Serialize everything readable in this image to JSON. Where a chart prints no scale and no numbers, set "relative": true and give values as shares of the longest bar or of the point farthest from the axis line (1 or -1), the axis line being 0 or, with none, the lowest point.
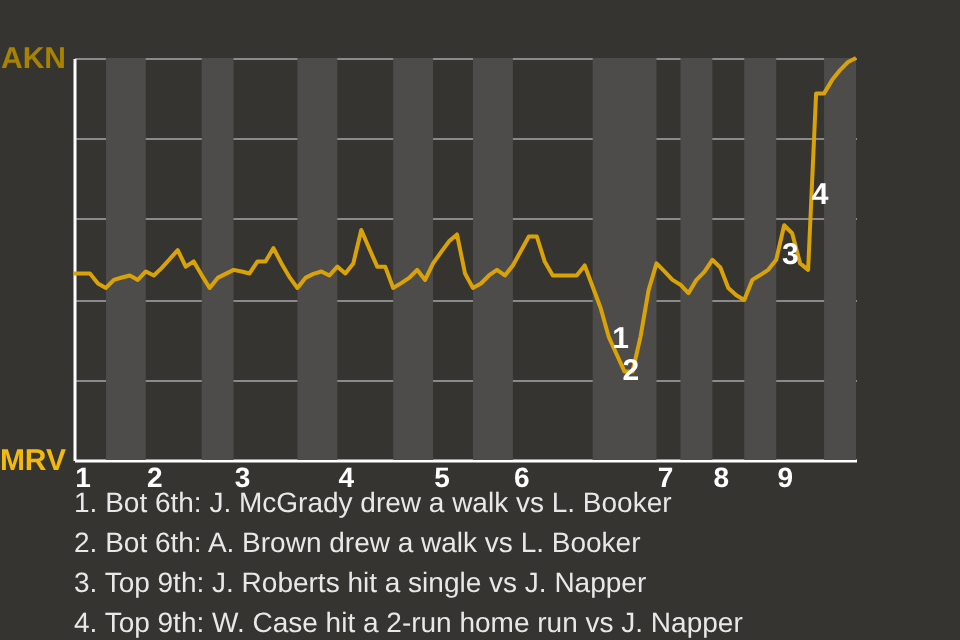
{
  "chart_data": {
    "type": "line",
    "categories": [
      null,
      "1",
      null,
      null,
      null,
      null,
      null,
      null,
      null,
      null,
      "2",
      null,
      null,
      null,
      null,
      null,
      null,
      null,
      null,
      null,
      null,
      "3",
      null,
      null,
      null,
      null,
      null,
      null,
      null,
      null,
      null,
      null,
      null,
      null,
      "4",
      null,
      null,
      null,
      null,
      null,
      null,
      null,
      null,
      null,
      null,
      null,
      "5",
      null,
      null,
      null,
      null,
      null,
      null,
      null,
      null,
      null,
      "6",
      null,
      null,
      null,
      null,
      null,
      null,
      null,
      null,
      null,
      null,
      null,
      null,
      null,
      null,
      null,
      null,
      null,
      "7",
      null,
      null,
      null,
      null,
      null,
      null,
      "8",
      null,
      null,
      null,
      null,
      null,
      null,
      null,
      "9",
      null,
      null,
      null,
      null,
      null,
      null,
      null,
      null,
      null
    ],
    "series": [
      {
        "color": "#d9a307",
        "values": [
          0.464,
          0.464,
          0.464,
          0.439,
          0.428,
          0.448,
          0.454,
          0.459,
          0.448,
          0.469,
          0.459,
          0.478,
          0.5,
          0.522,
          0.481,
          0.494,
          0.46,
          0.428,
          0.453,
          0.463,
          0.473,
          0.469,
          0.464,
          0.494,
          0.494,
          0.527,
          0.489,
          0.455,
          0.428,
          0.453,
          0.463,
          0.469,
          0.459,
          0.481,
          0.464,
          0.489,
          0.572,
          0.526,
          0.481,
          0.481,
          0.428,
          0.44,
          0.453,
          0.473,
          0.448,
          0.489,
          0.517,
          0.544,
          0.561,
          0.464,
          0.428,
          0.439,
          0.459,
          0.473,
          0.459,
          0.484,
          0.52,
          0.556,
          0.556,
          0.493,
          0.459,
          0.459,
          0.459,
          0.459,
          0.484,
          0.431,
          0.378,
          0.307,
          0.263,
          0.22,
          0.22,
          0.307,
          0.422,
          0.489,
          0.469,
          0.448,
          0.436,
          0.415,
          0.448,
          0.468,
          0.498,
          0.479,
          0.428,
          0.41,
          0.398,
          0.448,
          0.46,
          0.473,
          0.498,
          0.584,
          0.564,
          0.489,
          0.473,
          0.912,
          0.912,
          0.945,
          0.97,
          0.99,
          1
        ]
      }
    ],
    "relative": true,
    "grid": "y",
    "marker": "none",
    "line_style": "solid",
    "annotations": [
      "AKN",
      "MRV",
      "1",
      "2",
      "3",
      "4",
      "1. Bot 6th: J. McGrady drew a walk vs L. Booker",
      "2. Bot 6th: A. Brown drew a walk vs L. Booker",
      "3. Top 9th: J. Roberts hit a single vs J. Napper",
      "4. Top 9th: W. Case hit a 2-run home run vs J. Napper"
    ]
  }
}
